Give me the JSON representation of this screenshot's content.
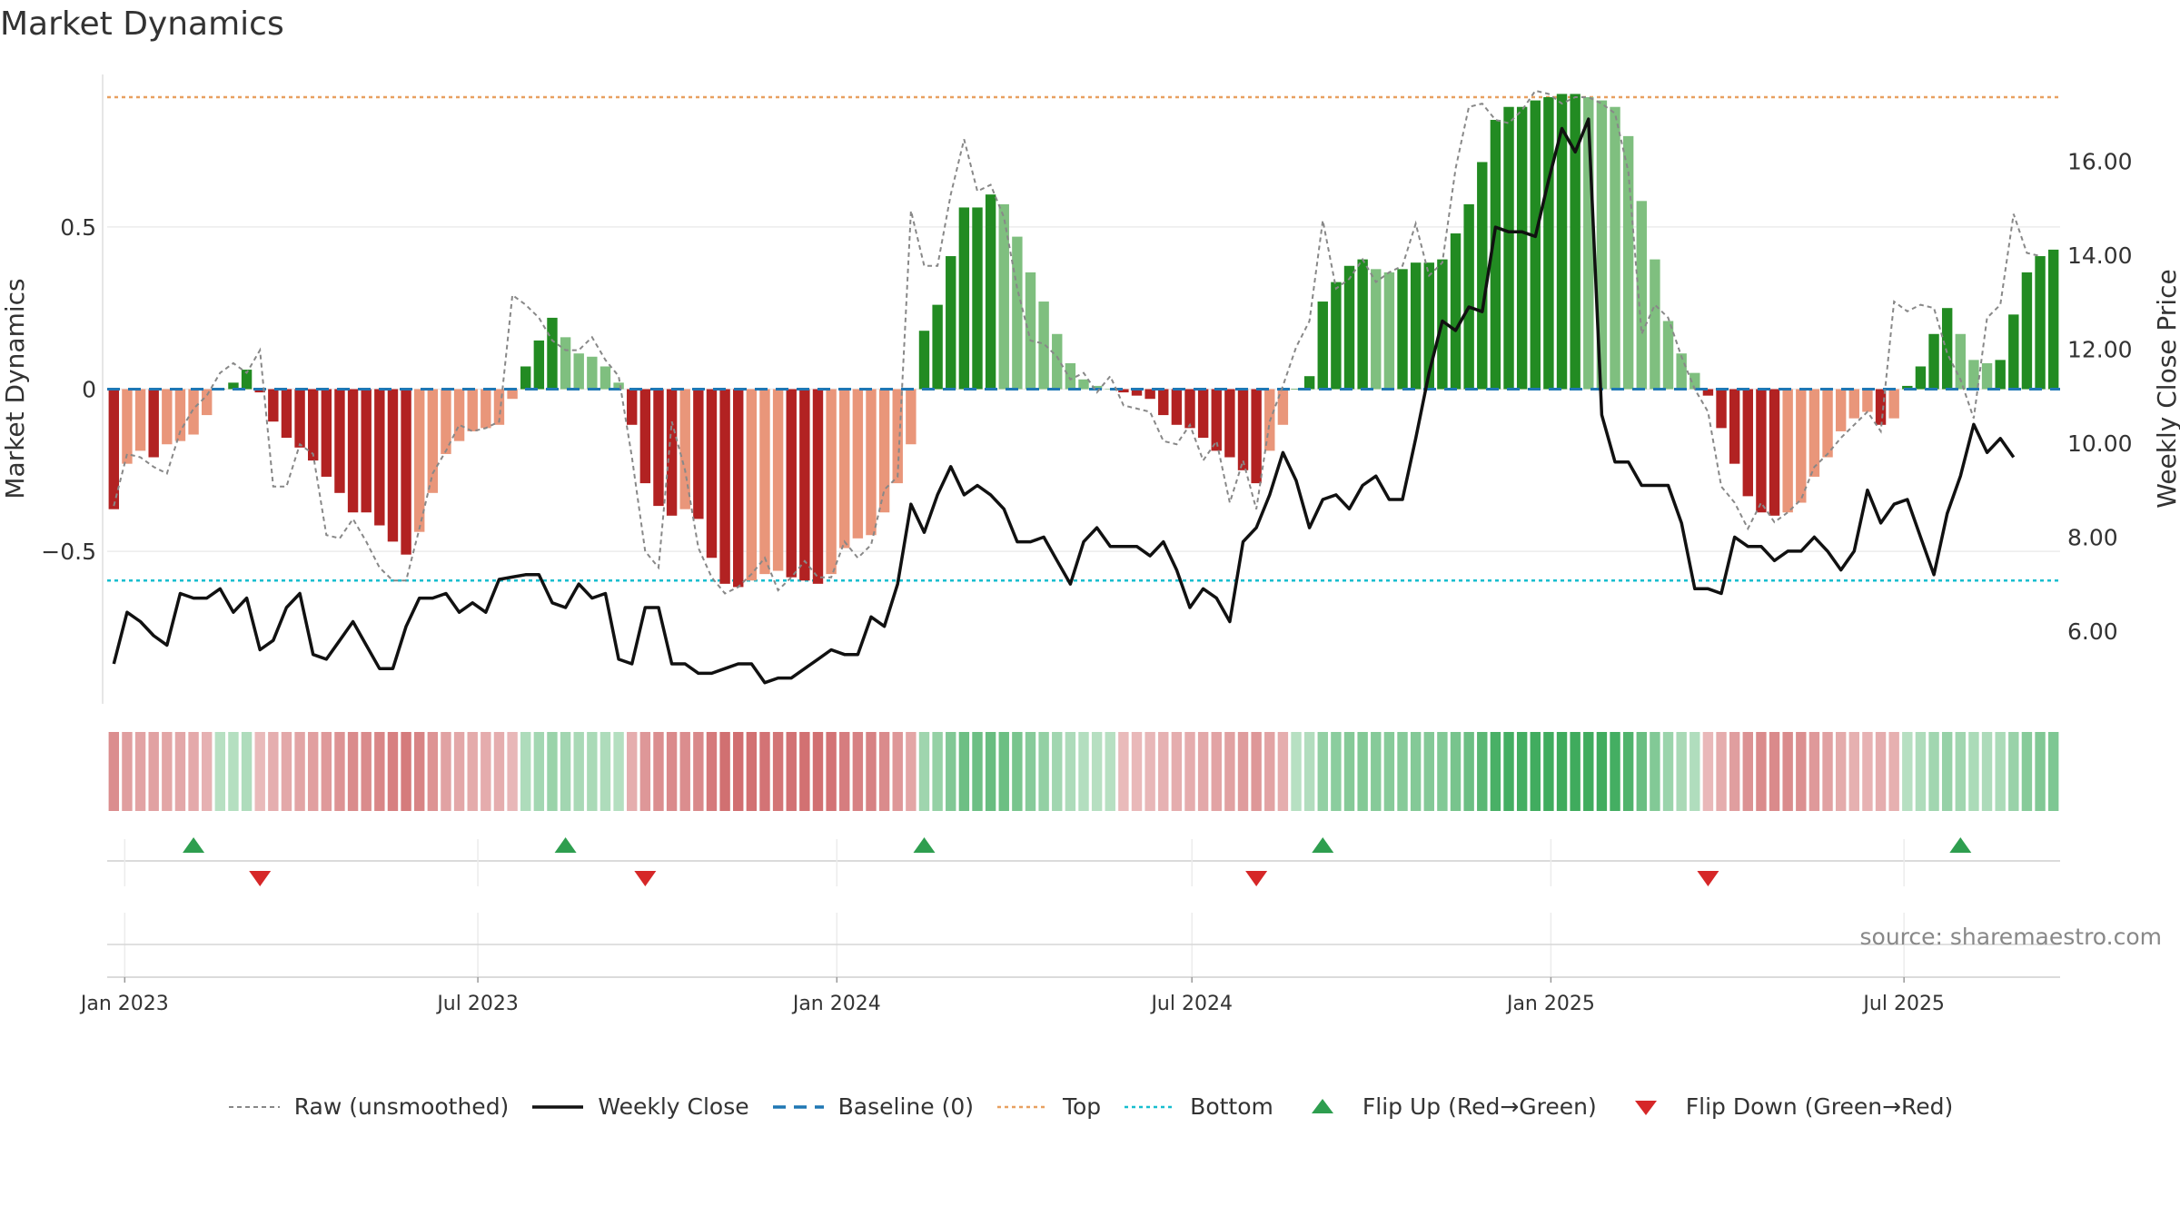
{
  "chart_data": {
    "type": "bar",
    "title": "Market Dynamics",
    "ylabel": "Market Dynamics",
    "y2label": "Weekly Close Price",
    "source": "source: sharemaestro.com",
    "ylim": [
      -0.97,
      0.97
    ],
    "y2lim": [
      4.45,
      17.85
    ],
    "yticks": [
      "0.5",
      "0",
      "−0.5"
    ],
    "yticks_values": [
      0.5,
      0,
      -0.5
    ],
    "y2ticks": [
      "6.00",
      "8.00",
      "10.00",
      "12.00",
      "14.00",
      "16.00"
    ],
    "y2ticks_values": [
      6,
      8,
      10,
      12,
      14,
      16
    ],
    "x_start": "2022-12-23",
    "x_end": "2025-09-19",
    "xticks": [
      "Jan 2023",
      "Jul 2023",
      "Jan 2024",
      "Jul 2024",
      "Jan 2025",
      "Jul 2025"
    ],
    "xticks_dates": [
      "2023-01-01",
      "2023-07-01",
      "2024-01-01",
      "2024-07-01",
      "2025-01-01",
      "2025-07-01"
    ],
    "top_level": 0.9,
    "bottom_level": -0.59,
    "baseline": 0,
    "colors": {
      "strong_red": "#b22222",
      "weak_red": "#e9967a",
      "strong_green": "#228b22",
      "weak_green": "#7fbf7f",
      "raw": "#888888",
      "close": "#111111",
      "baseline": "#1f77b4",
      "top": "#e8a060",
      "bottom": "#17becf",
      "flip_up": "#2e9e4f",
      "flip_down": "#d62728"
    },
    "dynamics": [
      -0.37,
      -0.23,
      -0.19,
      -0.21,
      -0.17,
      -0.16,
      -0.14,
      -0.08,
      0.0,
      0.02,
      0.06,
      -0.01,
      -0.1,
      -0.15,
      -0.18,
      -0.22,
      -0.27,
      -0.32,
      -0.38,
      -0.38,
      -0.42,
      -0.47,
      -0.51,
      -0.44,
      -0.32,
      -0.2,
      -0.16,
      -0.13,
      -0.12,
      -0.11,
      -0.03,
      0.07,
      0.15,
      0.22,
      0.16,
      0.11,
      0.1,
      0.07,
      0.02,
      -0.11,
      -0.29,
      -0.36,
      -0.39,
      -0.37,
      -0.4,
      -0.52,
      -0.6,
      -0.61,
      -0.59,
      -0.57,
      -0.56,
      -0.58,
      -0.59,
      -0.6,
      -0.57,
      -0.49,
      -0.46,
      -0.45,
      -0.38,
      -0.29,
      -0.17,
      0.18,
      0.26,
      0.41,
      0.56,
      0.56,
      0.6,
      0.57,
      0.47,
      0.36,
      0.27,
      0.17,
      0.08,
      0.03,
      0.01,
      0.0,
      -0.01,
      -0.02,
      -0.03,
      -0.08,
      -0.11,
      -0.12,
      -0.15,
      -0.19,
      -0.21,
      -0.25,
      -0.29,
      -0.19,
      -0.11,
      0.0,
      0.04,
      0.27,
      0.33,
      0.38,
      0.4,
      0.37,
      0.36,
      0.37,
      0.39,
      0.39,
      0.4,
      0.48,
      0.57,
      0.7,
      0.83,
      0.87,
      0.87,
      0.89,
      0.9,
      0.91,
      0.91,
      0.9,
      0.89,
      0.87,
      0.78,
      0.58,
      0.4,
      0.21,
      0.11,
      0.05,
      -0.02,
      -0.12,
      -0.23,
      -0.33,
      -0.38,
      -0.39,
      -0.38,
      -0.35,
      -0.27,
      -0.21,
      -0.13,
      -0.09,
      -0.07,
      -0.11,
      -0.09,
      0.01,
      0.07,
      0.17,
      0.25,
      0.17,
      0.09,
      0.08,
      0.09,
      0.23,
      0.36,
      0.41,
      0.43
    ],
    "raw": [
      -0.36,
      -0.2,
      -0.21,
      -0.24,
      -0.26,
      -0.13,
      -0.06,
      -0.02,
      0.05,
      0.08,
      0.05,
      0.12,
      -0.3,
      -0.3,
      -0.17,
      -0.2,
      -0.45,
      -0.46,
      -0.4,
      -0.47,
      -0.55,
      -0.59,
      -0.59,
      -0.43,
      -0.26,
      -0.19,
      -0.11,
      -0.13,
      -0.12,
      -0.1,
      0.29,
      0.26,
      0.22,
      0.15,
      0.12,
      0.12,
      0.16,
      0.09,
      0.04,
      -0.21,
      -0.5,
      -0.55,
      -0.1,
      -0.25,
      -0.49,
      -0.58,
      -0.63,
      -0.61,
      -0.57,
      -0.52,
      -0.62,
      -0.58,
      -0.53,
      -0.58,
      -0.58,
      -0.47,
      -0.52,
      -0.48,
      -0.31,
      -0.27,
      0.55,
      0.38,
      0.38,
      0.6,
      0.77,
      0.61,
      0.63,
      0.53,
      0.31,
      0.15,
      0.14,
      0.1,
      0.03,
      0.05,
      -0.01,
      0.04,
      -0.05,
      -0.06,
      -0.07,
      -0.16,
      -0.17,
      -0.11,
      -0.22,
      -0.16,
      -0.35,
      -0.22,
      -0.37,
      -0.1,
      0.01,
      0.13,
      0.21,
      0.52,
      0.31,
      0.34,
      0.4,
      0.33,
      0.36,
      0.38,
      0.51,
      0.35,
      0.39,
      0.68,
      0.87,
      0.88,
      0.83,
      0.82,
      0.86,
      0.92,
      0.91,
      0.88,
      0.9,
      0.9,
      0.88,
      0.85,
      0.67,
      0.17,
      0.26,
      0.22,
      0.1,
      0.0,
      -0.07,
      -0.3,
      -0.35,
      -0.43,
      -0.35,
      -0.41,
      -0.38,
      -0.34,
      -0.24,
      -0.2,
      -0.15,
      -0.11,
      -0.07,
      -0.13,
      0.27,
      0.24,
      0.26,
      0.25,
      0.11,
      0.03,
      -0.09,
      0.22,
      0.26,
      0.54,
      0.42,
      0.41
    ],
    "close": [
      5.3,
      6.4,
      6.2,
      5.9,
      5.7,
      6.8,
      6.7,
      6.7,
      6.9,
      6.4,
      6.7,
      5.6,
      5.8,
      6.5,
      6.8,
      5.5,
      5.4,
      5.8,
      6.2,
      5.7,
      5.2,
      5.2,
      6.1,
      6.7,
      6.7,
      6.8,
      6.4,
      6.6,
      6.4,
      7.1,
      7.15,
      7.2,
      7.2,
      6.6,
      6.5,
      7.0,
      6.7,
      6.8,
      5.4,
      5.3,
      6.5,
      6.5,
      5.3,
      5.3,
      5.1,
      5.1,
      5.2,
      5.3,
      5.3,
      4.9,
      5.0,
      5.0,
      5.2,
      5.4,
      5.6,
      5.5,
      5.5,
      6.3,
      6.1,
      7.0,
      8.7,
      8.1,
      8.9,
      9.5,
      8.9,
      9.1,
      8.9,
      8.6,
      7.9,
      7.9,
      8.0,
      7.5,
      7.0,
      7.9,
      8.2,
      7.8,
      7.8,
      7.8,
      7.6,
      7.9,
      7.3,
      6.5,
      6.9,
      6.7,
      6.2,
      7.9,
      8.2,
      8.9,
      9.8,
      9.2,
      8.2,
      8.8,
      8.9,
      8.6,
      9.1,
      9.3,
      8.8,
      8.8,
      10.1,
      11.5,
      12.6,
      12.4,
      12.9,
      12.8,
      14.6,
      14.5,
      14.5,
      14.4,
      15.6,
      16.7,
      16.2,
      16.9,
      10.6,
      9.6,
      9.6,
      9.1,
      9.1,
      9.1,
      8.3,
      6.9,
      6.9,
      6.8,
      8.0,
      7.8,
      7.8,
      7.5,
      7.7,
      7.7,
      8.0,
      7.7,
      7.3,
      7.7,
      9.0,
      8.3,
      8.7,
      8.8,
      8.0,
      7.2,
      8.5,
      9.3,
      10.4,
      9.8,
      10.1,
      9.7
    ],
    "flip_up_weeks": [
      6,
      34,
      61,
      91,
      139
    ],
    "flip_down_weeks": [
      11,
      40,
      86,
      120
    ]
  },
  "legend": [
    {
      "label": "Raw (unsmoothed)",
      "icon": "dashed-line-icon",
      "color": "#888888"
    },
    {
      "label": "Weekly Close",
      "icon": "solid-line-icon",
      "color": "#111111"
    },
    {
      "label": "Baseline (0)",
      "icon": "dashed-line-icon",
      "color": "#1f77b4"
    },
    {
      "label": "Top",
      "icon": "dotted-line-icon",
      "color": "#e8a060"
    },
    {
      "label": "Bottom",
      "icon": "dotted-line-icon",
      "color": "#17becf"
    },
    {
      "label": "Flip Up (Red→Green)",
      "icon": "triangle-up-icon",
      "color": "#2e9e4f"
    },
    {
      "label": "Flip Down (Green→Red)",
      "icon": "triangle-down-icon",
      "color": "#d62728"
    }
  ]
}
